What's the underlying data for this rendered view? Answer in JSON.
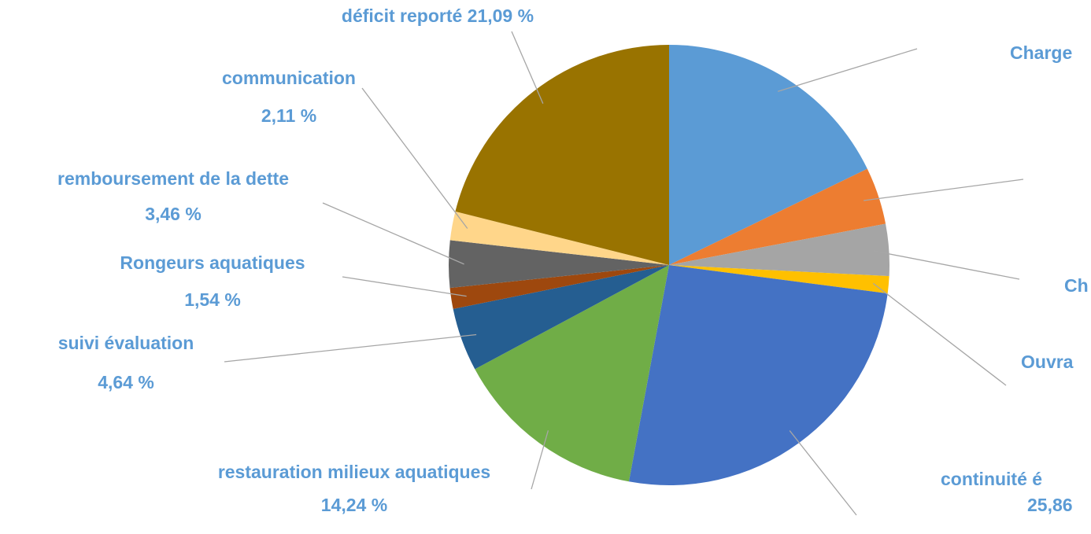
{
  "chart_data": {
    "type": "pie",
    "categories": [
      "Charge",
      null,
      "Ch",
      "Ouvra",
      "continuité é",
      "restauration milieux aquatiques",
      "suivi évaluation",
      "Rongeurs aquatiques",
      "remboursement de la dette",
      "communication",
      "déficit reporté"
    ],
    "values": [
      17.8,
      4.2,
      3.8,
      1.26,
      25.86,
      14.24,
      4.64,
      1.54,
      3.46,
      2.11,
      21.09
    ],
    "value_labels": [
      null,
      null,
      null,
      null,
      "25,86",
      "14,24 %",
      "4,64 %",
      "1,54 %",
      "3,46 %",
      "2,11 %",
      "21,09 %"
    ],
    "colors": [
      "#5b9bd5",
      "#ed7d31",
      "#a5a5a5",
      "#ffc000",
      "#4472c4",
      "#70ad47",
      "#255e91",
      "#9e480e",
      "#636363",
      "#ffd68a",
      "#997300"
    ]
  }
}
